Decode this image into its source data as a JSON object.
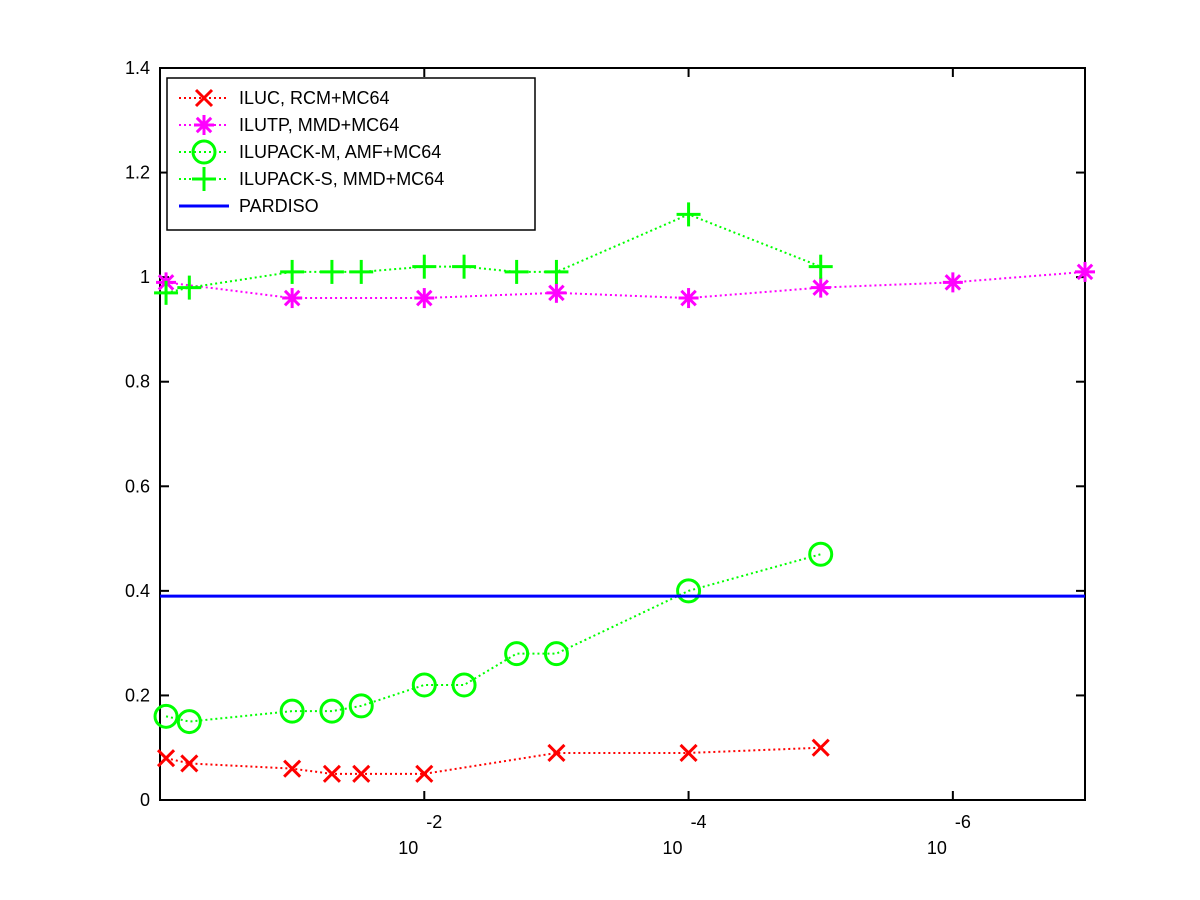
{
  "chart_data": {
    "type": "line",
    "title": "",
    "xlabel": "",
    "ylabel": "",
    "x_scale": "log10-reversed",
    "xlim": [
      1,
      1e-07
    ],
    "ylim": [
      0,
      1.4
    ],
    "grid": false,
    "legend_position": "top-left",
    "y_ticks": [
      {
        "value": 0,
        "label": "0"
      },
      {
        "value": 0.2,
        "label": "0.2"
      },
      {
        "value": 0.4,
        "label": "0.4"
      },
      {
        "value": 0.6,
        "label": "0.6"
      },
      {
        "value": 0.8,
        "label": "0.8"
      },
      {
        "value": 1.0,
        "label": "1"
      },
      {
        "value": 1.2,
        "label": "1.2"
      },
      {
        "value": 1.4,
        "label": "1.4"
      }
    ],
    "x_ticks": [
      {
        "exponent": -2,
        "base": "10",
        "exp_label": "-2"
      },
      {
        "exponent": -4,
        "base": "10",
        "exp_label": "-4"
      },
      {
        "exponent": -6,
        "base": "10",
        "exp_label": "-6"
      }
    ],
    "series": [
      {
        "name": "ILUC, RCM+MC64",
        "color": "#ff0000",
        "marker": "x",
        "x": [
          0.9,
          0.6,
          0.1,
          0.05,
          0.03,
          0.01,
          0.001,
          0.0001,
          1e-05
        ],
        "y": [
          0.08,
          0.07,
          0.06,
          0.05,
          0.05,
          0.05,
          0.09,
          0.09,
          0.1
        ]
      },
      {
        "name": "ILUTP, MMD+MC64",
        "color": "#ff00ff",
        "marker": "star",
        "x": [
          0.9,
          0.1,
          0.01,
          0.001,
          0.0001,
          1e-05,
          1e-06,
          1e-07
        ],
        "y": [
          0.99,
          0.96,
          0.96,
          0.97,
          0.96,
          0.98,
          0.99,
          1.01
        ]
      },
      {
        "name": "ILUPACK-M, AMF+MC64",
        "color": "#00ff00",
        "marker": "circle",
        "x": [
          0.9,
          0.6,
          0.1,
          0.05,
          0.03,
          0.01,
          0.005,
          0.002,
          0.001,
          0.0001,
          1e-05
        ],
        "y": [
          0.16,
          0.15,
          0.17,
          0.17,
          0.18,
          0.22,
          0.22,
          0.28,
          0.28,
          0.4,
          0.47
        ]
      },
      {
        "name": "ILUPACK-S, MMD+MC64",
        "color": "#00ff00",
        "marker": "plus",
        "x": [
          0.9,
          0.6,
          0.1,
          0.05,
          0.03,
          0.01,
          0.005,
          0.002,
          0.001,
          0.0001,
          1e-05
        ],
        "y": [
          0.97,
          0.98,
          1.01,
          1.01,
          1.01,
          1.02,
          1.02,
          1.01,
          1.01,
          1.12,
          1.02
        ]
      },
      {
        "name": "PARDISO",
        "color": "#0000ff",
        "marker": "none",
        "line": "solid",
        "x": [
          1,
          1e-07
        ],
        "y": [
          0.39,
          0.39
        ]
      }
    ]
  }
}
